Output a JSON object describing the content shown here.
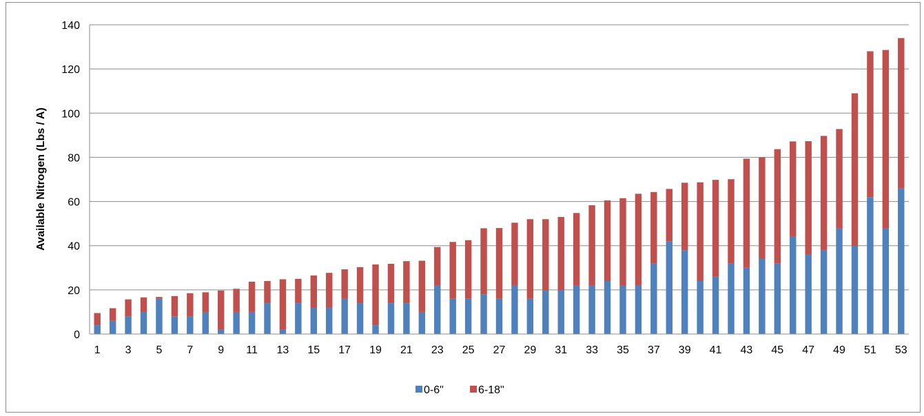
{
  "chart_data": {
    "type": "bar",
    "stacked": true,
    "ylabel": "Available Nitrogen (Lbs / A)",
    "xlabel": "",
    "ylim": [
      0,
      140
    ],
    "yticks": [
      0,
      20,
      40,
      60,
      80,
      100,
      120,
      140
    ],
    "grid": true,
    "legend_position": "bottom",
    "categories": [
      1,
      2,
      3,
      4,
      5,
      6,
      7,
      8,
      9,
      10,
      11,
      12,
      13,
      14,
      15,
      16,
      17,
      18,
      19,
      20,
      21,
      22,
      23,
      24,
      25,
      26,
      27,
      28,
      29,
      30,
      31,
      32,
      33,
      34,
      35,
      36,
      37,
      38,
      39,
      40,
      41,
      42,
      43,
      44,
      45,
      46,
      47,
      48,
      49,
      50,
      51,
      52,
      53
    ],
    "x_tick_labels": [
      "1",
      "3",
      "5",
      "7",
      "9",
      "11",
      "13",
      "15",
      "17",
      "19",
      "21",
      "23",
      "25",
      "27",
      "29",
      "31",
      "33",
      "35",
      "37",
      "39",
      "41",
      "43",
      "45",
      "47",
      "49",
      "51",
      "53"
    ],
    "series": [
      {
        "name": "0-6\"",
        "color": "#4f81bd",
        "values": [
          4,
          6,
          8,
          10,
          16,
          8,
          8,
          10,
          2,
          10,
          10,
          14,
          2,
          14,
          12,
          12,
          16,
          14,
          4,
          14,
          14,
          10,
          22,
          16,
          16,
          18,
          16,
          22,
          16,
          20,
          20,
          22,
          22,
          24,
          22,
          22,
          32,
          42,
          38,
          24,
          26,
          32,
          30,
          34,
          32,
          44,
          36,
          38,
          48,
          40,
          62,
          48,
          66
        ]
      },
      {
        "name": "6-18\"",
        "color": "#c0504d",
        "values": [
          5.5,
          5.7,
          7.7,
          6.6,
          0.8,
          9.2,
          10.5,
          8.9,
          17.7,
          10.5,
          13.7,
          10,
          22.8,
          11,
          14.5,
          15.7,
          13.3,
          16.3,
          27.5,
          17.8,
          19,
          23.2,
          17.4,
          25.7,
          26.5,
          29.9,
          32,
          28.4,
          36,
          32,
          33,
          32.8,
          36.3,
          36.5,
          39.5,
          41.5,
          32.3,
          23.7,
          30.5,
          44.7,
          43.8,
          38.1,
          49.4,
          46,
          51.7,
          43.2,
          51.3,
          51.7,
          44.8,
          69,
          66,
          80.6,
          68
        ]
      }
    ]
  }
}
